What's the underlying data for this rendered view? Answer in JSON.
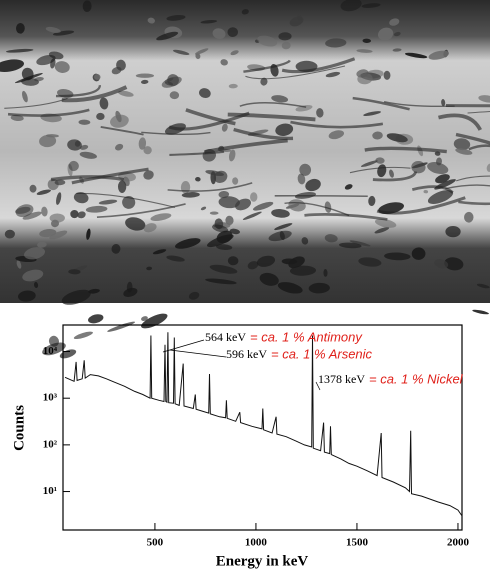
{
  "chart_data": {
    "type": "line",
    "log_y": true,
    "grid": false,
    "x_label": "Energy in keV",
    "y_label": "Counts",
    "xlim": [
      45,
      2020
    ],
    "xticks": [
      500,
      1000,
      1500,
      2000
    ],
    "ylim": [
      1.5,
      37000
    ],
    "yticks": [
      {
        "value": 10,
        "label": "10¹"
      },
      {
        "value": 100,
        "label": "10²"
      },
      {
        "value": 1000,
        "label": "10³"
      },
      {
        "value": 10000,
        "label": "10⁴"
      }
    ],
    "annotations": [
      {
        "text": "564 keV",
        "note": "= ca. 1 % Antimony"
      },
      {
        "text": "596 keV",
        "note": "= ca. 1 % Arsenic"
      },
      {
        "text": "1378 keV",
        "note": "= ca. 1 % Nickel"
      }
    ],
    "series": [
      {
        "color": "#111111",
        "x": [
          55,
          80,
          100,
          110,
          115,
          140,
          150,
          155,
          180,
          220,
          260,
          300,
          350,
          400,
          440,
          476,
          480,
          484,
          520,
          545,
          550,
          554,
          560,
          564,
          568,
          592,
          596,
          600,
          620,
          640,
          644,
          690,
          700,
          704,
          740,
          766,
          770,
          774,
          820,
          850,
          854,
          858,
          900,
          920,
          924,
          980,
          1030,
          1034,
          1038,
          1080,
          1100,
          1104,
          1150,
          1200,
          1240,
          1276,
          1280,
          1284,
          1320,
          1335,
          1339,
          1365,
          1369,
          1373,
          1420,
          1460,
          1500,
          1550,
          1600,
          1620,
          1624,
          1680,
          1740,
          1760,
          1766,
          1770,
          1820,
          1900,
          1960,
          2000,
          2020
        ],
        "values": [
          2800,
          2500,
          2300,
          6000,
          2400,
          2600,
          6500,
          2700,
          3200,
          3000,
          2600,
          2200,
          1800,
          1400,
          1200,
          1000,
          22000,
          1000,
          900,
          850,
          14000,
          850,
          820,
          26000,
          800,
          780,
          20000,
          760,
          700,
          5500,
          680,
          600,
          1200,
          580,
          520,
          480,
          3300,
          460,
          400,
          380,
          900,
          370,
          320,
          500,
          300,
          250,
          220,
          600,
          210,
          180,
          400,
          170,
          150,
          120,
          100,
          90,
          22000,
          85,
          75,
          300,
          70,
          65,
          250,
          62,
          50,
          40,
          35,
          28,
          22,
          180,
          20,
          16,
          12,
          10,
          200,
          9,
          8,
          6,
          5,
          4,
          3
        ]
      }
    ]
  }
}
